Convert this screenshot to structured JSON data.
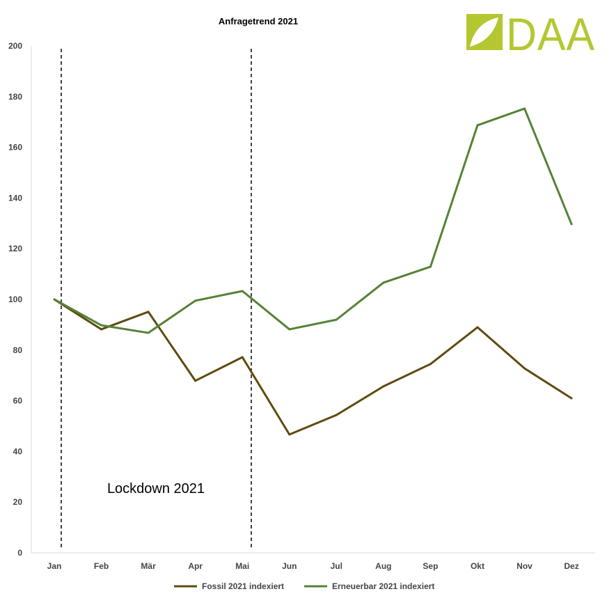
{
  "logo": {
    "text": "DAA",
    "color": "#b5c730"
  },
  "chart_data": {
    "type": "line",
    "title": "Anfragetrend 2021",
    "xlabel": "",
    "ylabel": "",
    "categories": [
      "Jan",
      "Feb",
      "Mär",
      "Apr",
      "Mai",
      "Jun",
      "Jul",
      "Aug",
      "Sep",
      "Okt",
      "Nov",
      "Dez"
    ],
    "ylim": [
      0,
      200
    ],
    "yticks": [
      0,
      20,
      40,
      60,
      80,
      100,
      120,
      140,
      160,
      180,
      200
    ],
    "grid": false,
    "legend": "bottom",
    "series": [
      {
        "name": "Fossil 2021 indexiert",
        "color": "#5f4a0f",
        "values": [
          100,
          88.2,
          95.1,
          67.9,
          77.2,
          46.7,
          54.4,
          65.7,
          74.5,
          89.0,
          72.8,
          61.0
        ]
      },
      {
        "name": "Erneuerbar 2021 indexiert",
        "color": "#548235",
        "values": [
          100,
          89.8,
          86.8,
          99.5,
          103.3,
          88.2,
          92.0,
          106.6,
          112.9,
          168.7,
          175.3,
          129.7
        ]
      }
    ],
    "annotations": [
      {
        "text": "Lockdown 2021",
        "type": "dashed-vertical-lines",
        "from": "Jan",
        "to": "Mai"
      }
    ]
  }
}
